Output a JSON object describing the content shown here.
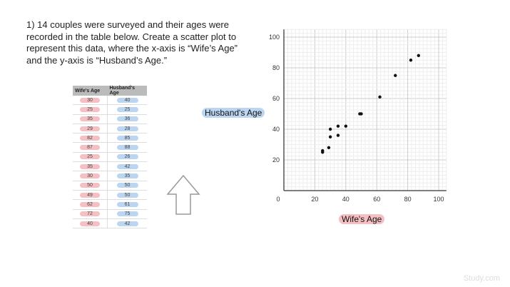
{
  "question": "1) 14 couples were surveyed and their ages were recorded in the table below. Create a scatter plot to represent this data, where the x-axis is “Wife’s Age” and the y-axis is “Husband’s Age.”",
  "table": {
    "headers": [
      "Wife's Age",
      "Husband's Age"
    ],
    "rows": [
      [
        30,
        40
      ],
      [
        25,
        25
      ],
      [
        35,
        36
      ],
      [
        29,
        28
      ],
      [
        82,
        85
      ],
      [
        87,
        88
      ],
      [
        25,
        26
      ],
      [
        35,
        42
      ],
      [
        30,
        35
      ],
      [
        50,
        50
      ],
      [
        49,
        50
      ],
      [
        62,
        61
      ],
      [
        72,
        75
      ],
      [
        40,
        42
      ]
    ]
  },
  "labels": {
    "y": "Husband's Age",
    "x": "Wife's Age"
  },
  "watermark": "Study.com",
  "colors": {
    "wife_highlight": "#f5c0c4",
    "husband_highlight": "#bcd6f2"
  },
  "chart_data": {
    "type": "scatter",
    "xlim": [
      0,
      100
    ],
    "ylim": [
      0,
      100
    ],
    "xticks": [
      0,
      20,
      40,
      60,
      80,
      100
    ],
    "yticks": [
      20,
      40,
      60,
      80,
      100
    ],
    "grid": true,
    "points": [
      [
        30,
        40
      ],
      [
        25,
        25
      ],
      [
        35,
        36
      ],
      [
        29,
        28
      ],
      [
        82,
        85
      ],
      [
        87,
        88
      ],
      [
        25,
        26
      ],
      [
        35,
        42
      ],
      [
        30,
        35
      ],
      [
        50,
        50
      ],
      [
        49,
        50
      ],
      [
        62,
        61
      ],
      [
        72,
        75
      ],
      [
        40,
        42
      ]
    ]
  }
}
